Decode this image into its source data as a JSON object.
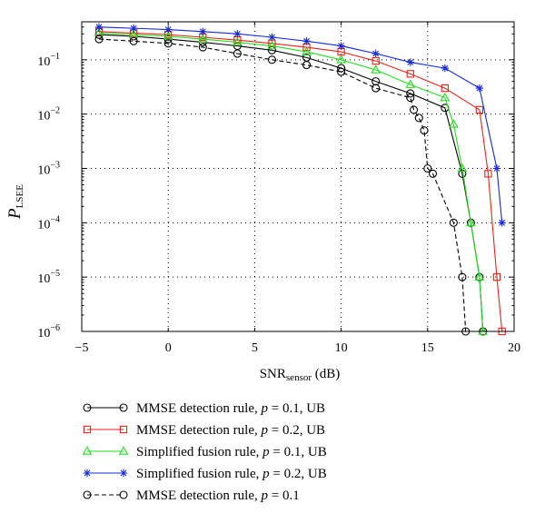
{
  "chart_data": {
    "type": "line",
    "title": "",
    "xlabel": {
      "base": "SNR",
      "sub": "sensor",
      "suffix": " (dB)"
    },
    "ylabel": {
      "base": "P",
      "sub": "LSEE"
    },
    "xlim": [
      -5,
      20
    ],
    "ylim": [
      1e-06,
      0.5
    ],
    "yscale": "log",
    "grid": true,
    "xticks": [
      -5,
      0,
      5,
      10,
      15,
      20
    ],
    "xtick_labels": [
      "−5",
      "0",
      "5",
      "10",
      "15",
      "20"
    ],
    "yticks": [
      1e-06,
      1e-05,
      0.0001,
      0.001,
      0.01,
      0.1
    ],
    "ytick_labels": [
      {
        "base": "10",
        "exp": "−6"
      },
      {
        "base": "10",
        "exp": "−5"
      },
      {
        "base": "10",
        "exp": "−4"
      },
      {
        "base": "10",
        "exp": "−3"
      },
      {
        "base": "10",
        "exp": "−2"
      },
      {
        "base": "10",
        "exp": "−1"
      }
    ],
    "legend_position": "below",
    "series": [
      {
        "name": "MMSE detection rule, p = 0.1, UB",
        "label_parts": {
          "pre": "MMSE detection rule, ",
          "var": "p",
          "post": " = 0.1, UB"
        },
        "color": "#000000",
        "marker": "circle",
        "dash": false,
        "x": [
          -4,
          -2,
          0,
          2,
          4,
          6,
          8,
          10,
          12,
          14,
          16,
          17,
          17.5,
          18,
          18.2
        ],
        "y": [
          0.29,
          0.27,
          0.24,
          0.21,
          0.18,
          0.15,
          0.11,
          0.07,
          0.04,
          0.024,
          0.013,
          0.0008,
          0.0001,
          1e-05,
          1e-06
        ]
      },
      {
        "name": "MMSE detection rule, p = 0.2, UB",
        "label_parts": {
          "pre": "MMSE detection rule, ",
          "var": "p",
          "post": " = 0.2, UB"
        },
        "color": "#e8231a",
        "marker": "square",
        "dash": false,
        "x": [
          -4,
          -2,
          0,
          2,
          4,
          6,
          8,
          10,
          12,
          14,
          16,
          18,
          18.5,
          19,
          19.3
        ],
        "y": [
          0.33,
          0.31,
          0.29,
          0.26,
          0.23,
          0.2,
          0.17,
          0.14,
          0.095,
          0.055,
          0.03,
          0.012,
          0.0008,
          1e-05,
          1e-06
        ]
      },
      {
        "name": "Simplified fusion rule, p = 0.1, UB",
        "label_parts": {
          "pre": "Simplified fusion rule, ",
          "var": "p",
          "post": " = 0.1, UB"
        },
        "color": "#22dd22",
        "marker": "triangle",
        "dash": false,
        "x": [
          -4,
          -2,
          0,
          2,
          4,
          6,
          8,
          10,
          12,
          14,
          16,
          16.5,
          17,
          17.5,
          18,
          18.2
        ],
        "y": [
          0.31,
          0.29,
          0.27,
          0.24,
          0.21,
          0.18,
          0.14,
          0.1,
          0.065,
          0.035,
          0.02,
          0.0065,
          0.001,
          0.0001,
          1e-05,
          1e-06
        ]
      },
      {
        "name": "Simplified fusion rule, p = 0.2, UB",
        "label_parts": {
          "pre": "Simplified fusion rule, ",
          "var": "p",
          "post": " = 0.2, UB"
        },
        "color": "#1428e0",
        "marker": "star",
        "dash": false,
        "x": [
          -4,
          -2,
          0,
          2,
          4,
          6,
          8,
          10,
          12,
          14,
          16,
          18,
          19,
          19.3
        ],
        "y": [
          0.4,
          0.38,
          0.36,
          0.33,
          0.3,
          0.26,
          0.22,
          0.18,
          0.13,
          0.09,
          0.07,
          0.03,
          0.001,
          0.0001
        ]
      },
      {
        "name": "MMSE detection rule, p = 0.1",
        "label_parts": {
          "pre": "MMSE detection rule, ",
          "var": "p",
          "post": " = 0.1"
        },
        "color": "#000000",
        "marker": "circle",
        "dash": true,
        "x": [
          -4,
          -2,
          0,
          2,
          4,
          6,
          8,
          10,
          12,
          14,
          14.2,
          14.5,
          14.8,
          15,
          15.3,
          16.5,
          17,
          17.2
        ],
        "y": [
          0.24,
          0.22,
          0.2,
          0.17,
          0.13,
          0.1,
          0.08,
          0.06,
          0.03,
          0.02,
          0.012,
          0.0085,
          0.005,
          0.001,
          0.0008,
          0.0001,
          1e-05,
          1e-06
        ]
      }
    ]
  }
}
